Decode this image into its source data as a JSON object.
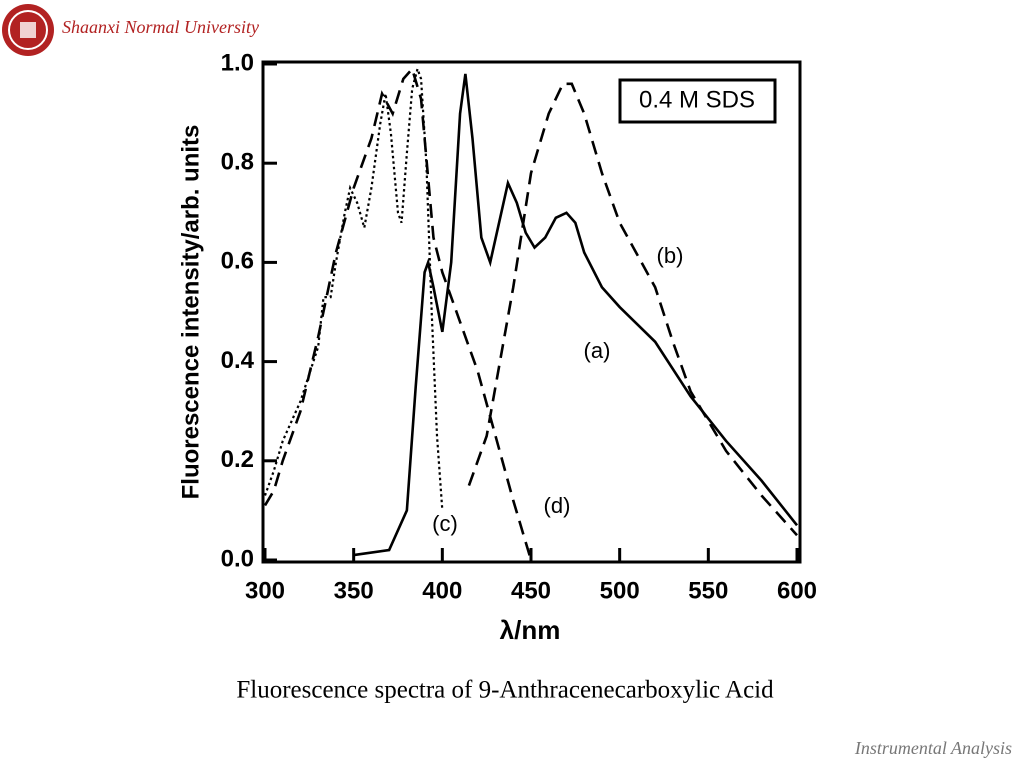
{
  "header": {
    "title": "Shaanxi Normal University"
  },
  "caption": "Fluorescence spectra of 9-Anthracenecarboxylic Acid",
  "footer": "Instrumental Analysis",
  "chart_data": {
    "type": "line",
    "xlabel": "λ/nm",
    "ylabel": "Fluorescence intensity/arb. units",
    "annotation": "0.4 M SDS",
    "xlim": [
      300,
      600
    ],
    "ylim": [
      0,
      1
    ],
    "xticks": [
      300,
      350,
      400,
      450,
      500,
      550,
      600
    ],
    "yticks": [
      {
        "value": 0,
        "label": "0.0"
      },
      0.2,
      0.4,
      0.6,
      0.8,
      {
        "value": 1,
        "label": "1.0"
      }
    ],
    "series": [
      {
        "name": "(a)",
        "color": "#000000",
        "dash": "solid",
        "x": [
          350,
          370,
          380,
          385,
          390,
          392,
          395,
          400,
          405,
          410,
          413,
          417,
          422,
          427,
          432,
          437,
          442,
          447,
          452,
          458,
          464,
          470,
          475,
          480,
          490,
          500,
          520,
          540,
          560,
          580,
          600
        ],
        "values": [
          0.01,
          0.02,
          0.1,
          0.35,
          0.58,
          0.6,
          0.55,
          0.46,
          0.6,
          0.9,
          0.98,
          0.85,
          0.65,
          0.6,
          0.68,
          0.76,
          0.72,
          0.66,
          0.63,
          0.65,
          0.69,
          0.7,
          0.68,
          0.62,
          0.55,
          0.51,
          0.44,
          0.33,
          0.24,
          0.16,
          0.07
        ]
      },
      {
        "name": "(b)",
        "color": "#000000",
        "dash": "dashed",
        "x": [
          415,
          425,
          430,
          440,
          450,
          460,
          468,
          473,
          480,
          490,
          500,
          520,
          530,
          540,
          560,
          580,
          600
        ],
        "values": [
          0.15,
          0.25,
          0.35,
          0.55,
          0.78,
          0.9,
          0.96,
          0.96,
          0.9,
          0.78,
          0.68,
          0.55,
          0.44,
          0.34,
          0.22,
          0.13,
          0.05
        ]
      },
      {
        "name": "(c)",
        "color": "#000000",
        "dash": "dotted",
        "x": [
          300,
          305,
          310,
          320,
          330,
          333,
          337,
          340,
          345,
          348,
          352,
          356,
          360,
          365,
          368,
          371,
          375,
          377,
          380,
          383,
          386,
          388,
          391,
          394,
          397,
          400
        ],
        "values": [
          0.13,
          0.18,
          0.24,
          0.32,
          0.43,
          0.53,
          0.53,
          0.6,
          0.7,
          0.75,
          0.72,
          0.67,
          0.75,
          0.88,
          0.94,
          0.86,
          0.7,
          0.68,
          0.82,
          0.95,
          0.99,
          0.97,
          0.8,
          0.5,
          0.25,
          0.1
        ]
      },
      {
        "name": "(d)",
        "color": "#000000",
        "dash": "dashed",
        "x": [
          300,
          305,
          310,
          320,
          330,
          340,
          350,
          360,
          366,
          372,
          378,
          383,
          388,
          395,
          400,
          410,
          420,
          430,
          440,
          450
        ],
        "values": [
          0.11,
          0.14,
          0.2,
          0.3,
          0.45,
          0.62,
          0.75,
          0.85,
          0.94,
          0.9,
          0.97,
          0.99,
          0.93,
          0.65,
          0.58,
          0.48,
          0.38,
          0.25,
          0.12,
          0
        ]
      }
    ]
  }
}
